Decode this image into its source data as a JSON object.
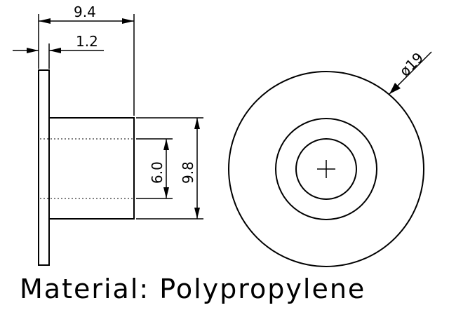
{
  "drawing": {
    "dims": {
      "total_length": "9.4",
      "flange_thickness": "1.2",
      "inner_diameter": "6.0",
      "outer_diameter": "9.8",
      "flange_diameter": "ø19"
    },
    "material_note": "Material: Polypropylene"
  }
}
